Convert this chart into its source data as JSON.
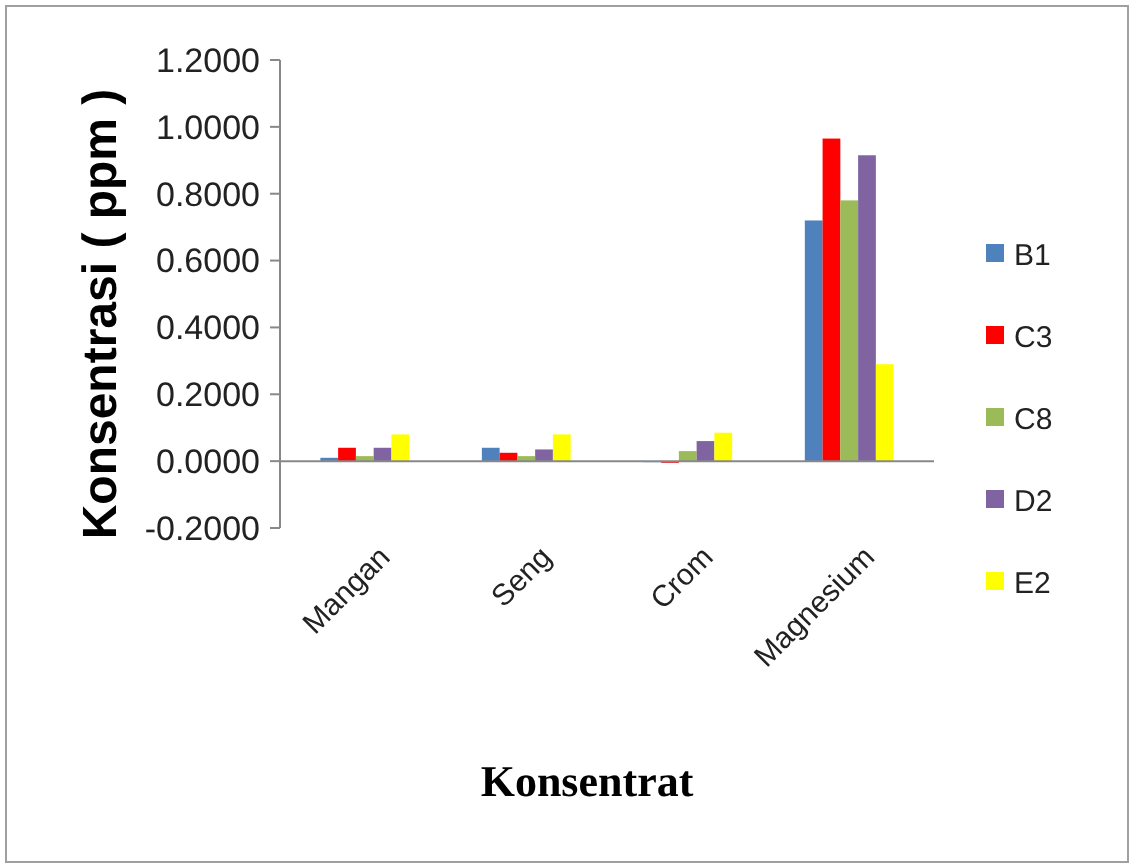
{
  "chart_data": {
    "type": "bar",
    "xlabel": "Konsentrat",
    "ylabel": "Konsentrasi ( ppm )",
    "categories": [
      "Mangan",
      "Seng",
      "Crom",
      "Magnesium"
    ],
    "series": [
      {
        "name": "B1",
        "color": "#4f81bd",
        "values": [
          0.01,
          0.04,
          0.0,
          0.72
        ]
      },
      {
        "name": "C3",
        "color": "#ff0000",
        "values": [
          0.04,
          0.025,
          -0.005,
          0.965
        ]
      },
      {
        "name": "C8",
        "color": "#9bbb59",
        "values": [
          0.015,
          0.015,
          0.03,
          0.78
        ]
      },
      {
        "name": "D2",
        "color": "#8064a2",
        "values": [
          0.04,
          0.035,
          0.06,
          0.915
        ]
      },
      {
        "name": "E2",
        "color": "#ffff00",
        "values": [
          0.08,
          0.08,
          0.085,
          0.29
        ]
      }
    ],
    "ylim": [
      -0.2,
      1.2
    ],
    "yticks": [
      {
        "value": -0.2,
        "label": "-0.2000"
      },
      {
        "value": 0,
        "label": "0.0000"
      },
      {
        "value": 0.2,
        "label": "0.2000"
      },
      {
        "value": 0.4,
        "label": "0.4000"
      },
      {
        "value": 0.6,
        "label": "0.6000"
      },
      {
        "value": 0.8,
        "label": "0.8000"
      },
      {
        "value": 1,
        "label": "1.0000"
      },
      {
        "value": 1.2,
        "label": "1.2000"
      }
    ],
    "legend": "right"
  }
}
